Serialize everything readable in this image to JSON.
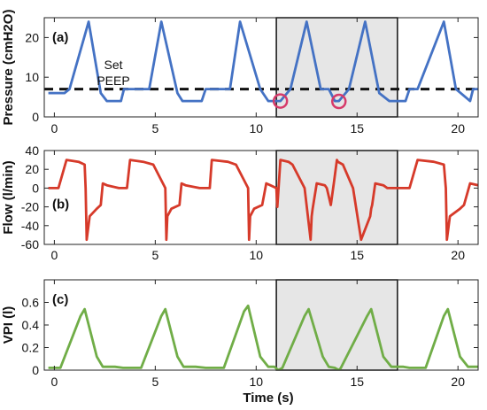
{
  "chart_data": [
    {
      "type": "line",
      "panel_label": "(a)",
      "ylabel": "Pressure (cmH2O)",
      "xlim": [
        -0.5,
        21
      ],
      "ylim": [
        0,
        25
      ],
      "xticks": [
        0,
        5,
        10,
        15,
        20
      ],
      "yticks": [
        0,
        10,
        20
      ],
      "highlight": {
        "x": [
          11,
          17
        ]
      },
      "color": "#4472C4",
      "series": [
        {
          "x": [
            -0.3,
            0.5,
            0.75,
            1.7,
            2.3,
            2.6,
            2.8,
            3.3,
            3.45,
            3.7,
            4.7,
            5.3,
            6.1,
            6.35,
            6.6,
            7.3,
            7.5,
            7.8,
            8.7,
            9.2,
            10.2,
            10.6,
            11.0,
            11.2,
            11.7,
            12.5,
            13.2,
            13.6,
            13.9,
            14.1,
            14.6,
            15.4,
            16.1,
            16.6,
            16.9,
            17.4,
            17.6,
            18.0,
            19.3,
            19.9,
            20.6,
            20.75,
            21.0
          ],
          "y": [
            6,
            6,
            7,
            24,
            6,
            4,
            4,
            4,
            7,
            7,
            7,
            24,
            6,
            4,
            4,
            4,
            7,
            7,
            7,
            24,
            7,
            4,
            4,
            4,
            7,
            24,
            7,
            7,
            4,
            4,
            7,
            24,
            6,
            4,
            4,
            4,
            7,
            7,
            24,
            7,
            4,
            7,
            7
          ]
        }
      ],
      "reference_line": {
        "y": 7,
        "label_lines": [
          "Set",
          "PEEP"
        ]
      },
      "markers": [
        {
          "x": 11.2,
          "y": 4
        },
        {
          "x": 14.1,
          "y": 3.9
        }
      ]
    },
    {
      "type": "line",
      "panel_label": "(b)",
      "ylabel": "Flow (l/min)",
      "xlim": [
        -0.5,
        21
      ],
      "ylim": [
        -60,
        40
      ],
      "xticks": [
        0,
        5,
        10,
        15,
        20
      ],
      "yticks": [
        -60,
        -40,
        -20,
        0,
        20,
        40
      ],
      "highlight": {
        "x": [
          11,
          17
        ]
      },
      "color": "#D63A2A",
      "series": [
        {
          "x": [
            -0.3,
            0.2,
            0.6,
            1.2,
            1.5,
            1.55,
            1.6,
            1.75,
            2.1,
            2.3,
            2.4,
            2.6,
            3.2,
            3.4,
            3.6,
            3.75,
            4.4,
            4.9,
            5.5,
            5.55,
            5.6,
            5.8,
            6.2,
            6.3,
            6.5,
            7.2,
            7.5,
            7.7,
            7.8,
            8.6,
            9.0,
            9.6,
            9.65,
            9.7,
            9.9,
            10.3,
            10.5,
            10.7,
            11.0,
            11.05,
            11.2,
            11.6,
            11.8,
            12.4,
            12.7,
            12.75,
            12.8,
            13.0,
            13.4,
            13.5,
            13.7,
            13.85,
            14.0,
            14.05,
            14.3,
            14.8,
            15.2,
            15.65,
            15.7,
            15.75,
            15.9,
            16.3,
            16.5,
            16.7,
            17.6,
            18.0,
            18.8,
            19.3,
            19.4,
            19.45,
            19.6,
            20.1,
            20.3,
            20.6,
            21.0
          ],
          "y": [
            0,
            0,
            30,
            28,
            25,
            0,
            -55,
            -30,
            -22,
            -18,
            5,
            3,
            0,
            0,
            0,
            30,
            28,
            25,
            0,
            -55,
            -30,
            -22,
            -18,
            5,
            3,
            0,
            0,
            0,
            30,
            28,
            25,
            0,
            -55,
            -30,
            -22,
            -18,
            5,
            3,
            0,
            -20,
            30,
            28,
            25,
            0,
            -55,
            -30,
            -22,
            5,
            3,
            0,
            -18,
            5,
            30,
            28,
            25,
            0,
            -55,
            -30,
            -22,
            -18,
            5,
            3,
            0,
            0,
            0,
            30,
            28,
            25,
            0,
            -55,
            -30,
            -22,
            -18,
            5,
            3
          ]
        }
      ]
    },
    {
      "type": "line",
      "panel_label": "(c)",
      "ylabel": "VPI (l)",
      "xlim": [
        -0.5,
        21
      ],
      "ylim": [
        0,
        0.8
      ],
      "xticks": [
        0,
        5,
        10,
        15,
        20
      ],
      "yticks": [
        0,
        0.2,
        0.4,
        0.6
      ],
      "highlight": {
        "x": [
          11,
          17
        ]
      },
      "color": "#70AD47",
      "series": [
        {
          "x": [
            -0.3,
            0.3,
            1.3,
            1.5,
            2.1,
            2.4,
            3.0,
            3.4,
            4.3,
            5.3,
            5.5,
            6.1,
            6.4,
            7.0,
            7.5,
            8.4,
            9.4,
            9.6,
            10.2,
            10.6,
            10.9,
            11.1,
            11.3,
            12.4,
            12.6,
            13.3,
            13.6,
            13.9,
            14.1,
            14.2,
            15.5,
            15.7,
            16.3,
            16.7,
            17.3,
            17.6,
            18.4,
            19.3,
            19.5,
            20.1,
            20.5,
            21.0
          ],
          "y": [
            0.02,
            0.02,
            0.48,
            0.54,
            0.12,
            0.03,
            0.03,
            0.02,
            0.02,
            0.48,
            0.54,
            0.12,
            0.03,
            0.03,
            0.02,
            0.02,
            0.52,
            0.57,
            0.12,
            0.03,
            0.03,
            0.0,
            0.02,
            0.48,
            0.54,
            0.12,
            0.03,
            0.02,
            0.0,
            0.02,
            0.48,
            0.54,
            0.12,
            0.03,
            0.03,
            0.02,
            0.02,
            0.48,
            0.54,
            0.12,
            0.03,
            0.03
          ]
        }
      ]
    }
  ],
  "xlabel": "Time (s)"
}
